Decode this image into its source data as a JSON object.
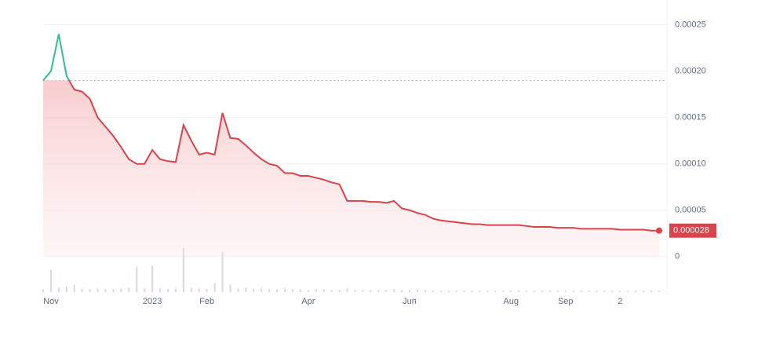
{
  "chart_data": {
    "type": "line",
    "categories": [
      null,
      "Nov",
      null,
      null,
      null,
      null,
      null,
      null,
      null,
      null,
      null,
      null,
      null,
      null,
      "2023",
      null,
      null,
      null,
      null,
      null,
      null,
      "Feb",
      null,
      null,
      null,
      null,
      null,
      null,
      null,
      null,
      null,
      null,
      null,
      null,
      "Apr",
      null,
      null,
      null,
      null,
      null,
      null,
      null,
      null,
      null,
      null,
      null,
      null,
      "Jun",
      null,
      null,
      null,
      null,
      null,
      null,
      null,
      null,
      null,
      null,
      null,
      null,
      "Aug",
      null,
      null,
      null,
      null,
      null,
      null,
      "Sep",
      null,
      null,
      null,
      null,
      null,
      null,
      "2",
      null,
      null,
      null,
      null,
      null
    ],
    "series": [
      {
        "name": null,
        "color": "#d9434b",
        "up_color": "#2fbf8a",
        "values": [
          0.00019,
          0.0002,
          0.00024,
          0.000195,
          0.00018,
          0.000178,
          0.00017,
          0.00015,
          0.00014,
          0.00013,
          0.000118,
          0.000105,
          0.0001,
          0.0001,
          0.000115,
          0.000105,
          0.000103,
          0.000102,
          0.000142,
          0.000125,
          0.00011,
          0.000112,
          0.00011,
          0.000155,
          0.000128,
          0.000127,
          0.00012,
          0.000112,
          0.000105,
          0.0001,
          9.8e-05,
          9e-05,
          9e-05,
          8.7e-05,
          8.7e-05,
          8.5e-05,
          8.3e-05,
          8e-05,
          7.8e-05,
          6e-05,
          6e-05,
          6e-05,
          5.9e-05,
          5.9e-05,
          5.8e-05,
          6e-05,
          5.2e-05,
          5e-05,
          4.7e-05,
          4.5e-05,
          4.1e-05,
          3.9e-05,
          3.8e-05,
          3.7e-05,
          3.6e-05,
          3.5e-05,
          3.5e-05,
          3.4e-05,
          3.4e-05,
          3.4e-05,
          3.4e-05,
          3.4e-05,
          3.3e-05,
          3.2e-05,
          3.2e-05,
          3.2e-05,
          3.1e-05,
          3.1e-05,
          3.1e-05,
          3e-05,
          3e-05,
          3e-05,
          3e-05,
          3e-05,
          2.9e-05,
          2.9e-05,
          2.9e-05,
          2.9e-05,
          2.8e-05,
          2.8e-05
        ]
      }
    ],
    "volume": [
      4,
      30,
      6,
      8,
      10,
      5,
      4,
      5,
      4,
      4,
      5,
      6,
      35,
      5,
      36,
      5,
      4,
      5,
      60,
      6,
      5,
      4,
      12,
      55,
      10,
      5,
      6,
      4,
      5,
      4,
      4,
      5,
      4,
      4,
      3,
      4,
      4,
      3,
      3,
      5,
      3,
      3,
      3,
      3,
      3,
      4,
      3,
      3,
      3,
      3,
      2,
      2,
      2,
      2,
      2,
      2,
      2,
      2,
      2,
      2,
      2,
      2,
      2,
      2,
      2,
      2,
      2,
      2,
      2,
      2,
      2,
      2,
      2,
      2,
      2,
      2,
      2,
      2,
      2,
      2
    ],
    "baseline": 0.00019,
    "price_tag": "0.000028",
    "ylim": [
      -4e-05,
      0.00027
    ],
    "yticks": [
      0,
      5e-05,
      {
        "value": 0.0001,
        "label": "0.00010"
      },
      0.00015,
      {
        "value": 0.0002,
        "label": "0.00020"
      },
      0.00025
    ],
    "grid": true
  }
}
